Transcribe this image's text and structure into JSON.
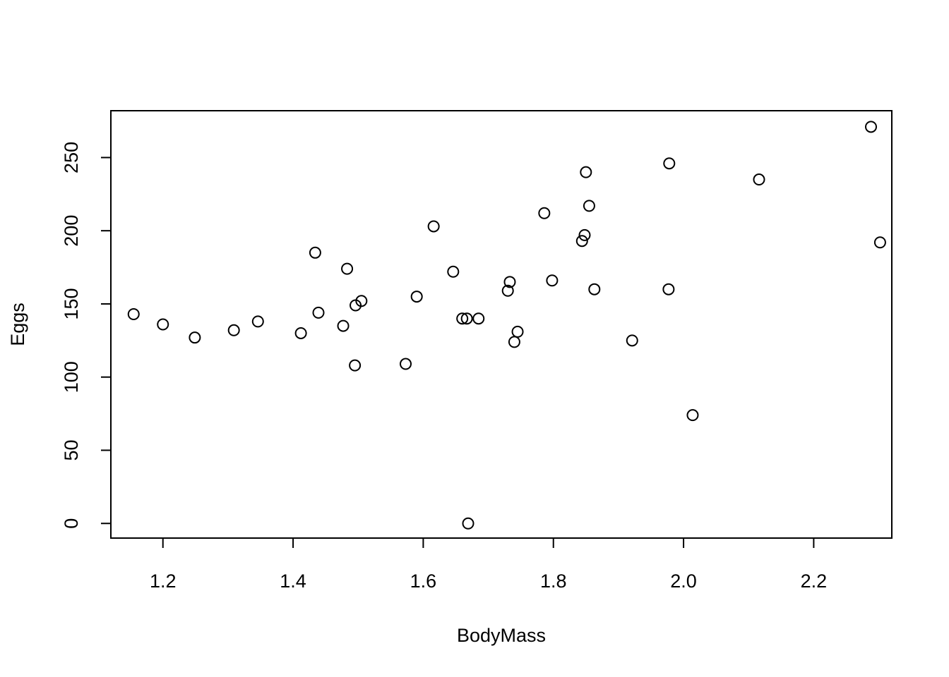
{
  "chart_data": {
    "type": "scatter",
    "title": "",
    "xlabel": "BodyMass",
    "ylabel": "Eggs",
    "xlim": [
      1.12,
      2.32
    ],
    "ylim": [
      -10,
      282
    ],
    "x_ticks": [
      1.2,
      1.4,
      1.6,
      1.8,
      2.0,
      2.2
    ],
    "x_tick_labels": [
      "1.2",
      "1.4",
      "1.6",
      "1.8",
      "2.0",
      "2.2"
    ],
    "y_ticks": [
      0,
      50,
      100,
      150,
      200,
      250
    ],
    "y_tick_labels": [
      "0",
      "50",
      "100",
      "150",
      "200",
      "250"
    ],
    "grid": false,
    "marker": "open-circle",
    "colors": {
      "stroke": "#000000",
      "background": "#ffffff"
    },
    "points": [
      {
        "x": 1.155,
        "y": 143
      },
      {
        "x": 1.2,
        "y": 136
      },
      {
        "x": 1.249,
        "y": 127
      },
      {
        "x": 1.309,
        "y": 132
      },
      {
        "x": 1.346,
        "y": 138
      },
      {
        "x": 1.412,
        "y": 130
      },
      {
        "x": 1.434,
        "y": 185
      },
      {
        "x": 1.439,
        "y": 144
      },
      {
        "x": 1.477,
        "y": 135
      },
      {
        "x": 1.483,
        "y": 174
      },
      {
        "x": 1.495,
        "y": 108
      },
      {
        "x": 1.496,
        "y": 149
      },
      {
        "x": 1.505,
        "y": 152
      },
      {
        "x": 1.573,
        "y": 109
      },
      {
        "x": 1.59,
        "y": 155
      },
      {
        "x": 1.616,
        "y": 203
      },
      {
        "x": 1.646,
        "y": 172
      },
      {
        "x": 1.66,
        "y": 140
      },
      {
        "x": 1.667,
        "y": 140
      },
      {
        "x": 1.669,
        "y": 0
      },
      {
        "x": 1.685,
        "y": 140
      },
      {
        "x": 1.73,
        "y": 159
      },
      {
        "x": 1.733,
        "y": 165
      },
      {
        "x": 1.74,
        "y": 124
      },
      {
        "x": 1.745,
        "y": 131
      },
      {
        "x": 1.786,
        "y": 212
      },
      {
        "x": 1.798,
        "y": 166
      },
      {
        "x": 1.844,
        "y": 193
      },
      {
        "x": 1.848,
        "y": 197
      },
      {
        "x": 1.85,
        "y": 240
      },
      {
        "x": 1.855,
        "y": 217
      },
      {
        "x": 1.863,
        "y": 160
      },
      {
        "x": 1.921,
        "y": 125
      },
      {
        "x": 1.977,
        "y": 160
      },
      {
        "x": 1.978,
        "y": 246
      },
      {
        "x": 2.014,
        "y": 74
      },
      {
        "x": 2.116,
        "y": 235
      },
      {
        "x": 2.288,
        "y": 271
      },
      {
        "x": 2.302,
        "y": 192
      }
    ]
  }
}
